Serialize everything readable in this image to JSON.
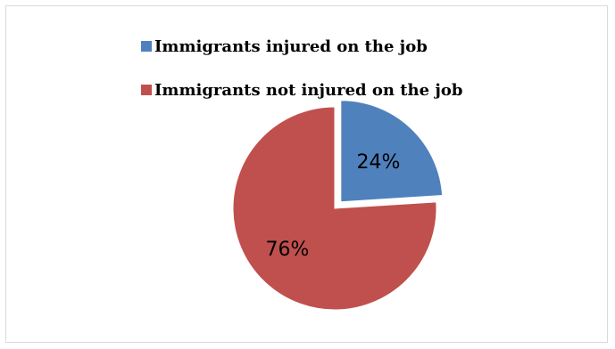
{
  "chart_data": {
    "type": "pie",
    "title": "",
    "categories": [
      "Immigrants injured on the job",
      "Immigrants not injured on the job"
    ],
    "values": [
      24,
      76
    ],
    "labels": [
      "24%",
      "76%"
    ],
    "colors": [
      "#4f81bd",
      "#c0504d"
    ],
    "exploded_slice": 0,
    "legend_position": "top"
  }
}
